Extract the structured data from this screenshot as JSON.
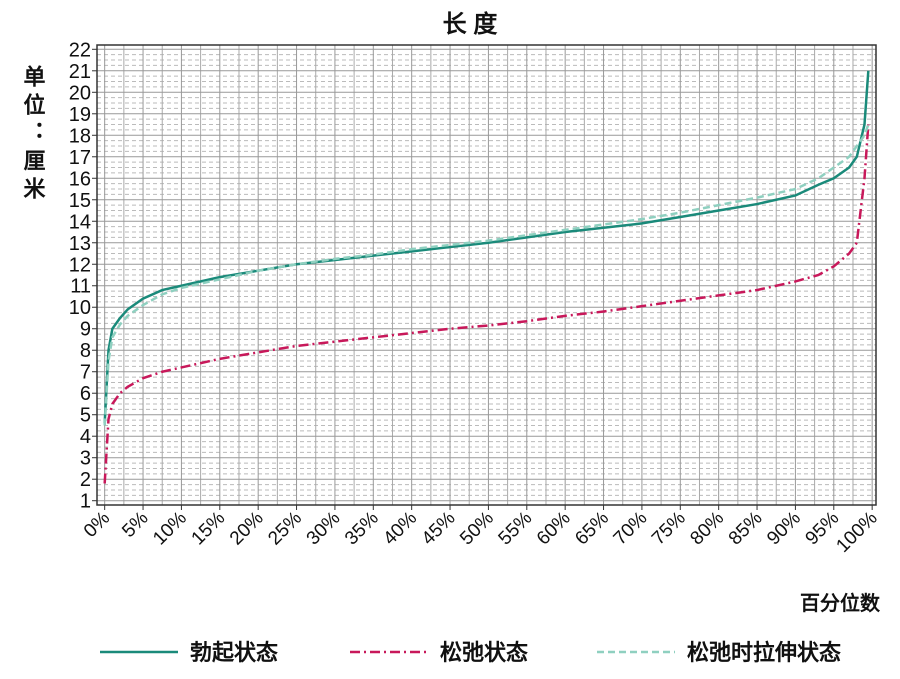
{
  "chart_data": {
    "type": "line",
    "title": "长 度",
    "y_label": "单位：厘米",
    "x_label": "百分位数",
    "x": [
      0,
      0.5,
      1,
      2,
      3,
      5,
      7.5,
      10,
      15,
      20,
      25,
      30,
      35,
      40,
      45,
      50,
      55,
      60,
      65,
      70,
      75,
      80,
      85,
      90,
      93,
      95,
      97,
      98,
      99,
      99.5
    ],
    "series": [
      {
        "name": "勃起状态",
        "color": "#1a8a7a",
        "dash": "solid",
        "values": [
          4.6,
          8.0,
          9.0,
          9.5,
          9.9,
          10.4,
          10.8,
          11.0,
          11.4,
          11.7,
          12.0,
          12.2,
          12.4,
          12.6,
          12.8,
          13.0,
          13.25,
          13.5,
          13.7,
          13.9,
          14.2,
          14.5,
          14.8,
          15.2,
          15.7,
          16.0,
          16.5,
          17.0,
          18.5,
          21.0
        ]
      },
      {
        "name": "松弛状态",
        "color": "#c8185a",
        "dash": "dashdot",
        "values": [
          1.8,
          4.8,
          5.5,
          6.0,
          6.3,
          6.7,
          7.0,
          7.2,
          7.6,
          7.9,
          8.2,
          8.4,
          8.6,
          8.8,
          9.0,
          9.15,
          9.35,
          9.6,
          9.8,
          10.05,
          10.3,
          10.55,
          10.8,
          11.2,
          11.5,
          11.9,
          12.5,
          13.0,
          16.0,
          18.5
        ]
      },
      {
        "name": "松弛时拉伸状态",
        "color": "#8fd0c0",
        "dash": "dashed",
        "values": [
          4.5,
          7.5,
          8.6,
          9.2,
          9.6,
          10.1,
          10.6,
          10.9,
          11.3,
          11.7,
          12.0,
          12.25,
          12.45,
          12.7,
          12.9,
          13.1,
          13.35,
          13.6,
          13.85,
          14.1,
          14.4,
          14.75,
          15.1,
          15.5,
          16.0,
          16.5,
          17.0,
          17.5,
          18.0,
          18.5
        ]
      }
    ],
    "xlim": [
      -1,
      100.5
    ],
    "ylim": [
      0.8,
      22.2
    ],
    "xticks": [
      {
        "value": 0,
        "label": "0%"
      },
      {
        "value": 5,
        "label": "5%"
      },
      {
        "value": 10,
        "label": "10%"
      },
      {
        "value": 15,
        "label": "15%"
      },
      {
        "value": 20,
        "label": "20%"
      },
      {
        "value": 25,
        "label": "25%"
      },
      {
        "value": 30,
        "label": "30%"
      },
      {
        "value": 35,
        "label": "35%"
      },
      {
        "value": 40,
        "label": "40%"
      },
      {
        "value": 45,
        "label": "45%"
      },
      {
        "value": 50,
        "label": "50%"
      },
      {
        "value": 55,
        "label": "55%"
      },
      {
        "value": 60,
        "label": "60%"
      },
      {
        "value": 65,
        "label": "65%"
      },
      {
        "value": 70,
        "label": "70%"
      },
      {
        "value": 75,
        "label": "75%"
      },
      {
        "value": 80,
        "label": "80%"
      },
      {
        "value": 85,
        "label": "85%"
      },
      {
        "value": 90,
        "label": "90%"
      },
      {
        "value": 95,
        "label": "95%"
      },
      {
        "value": 100,
        "label": "100%"
      }
    ],
    "yticks": [
      1,
      2,
      3,
      4,
      5,
      6,
      7,
      8,
      9,
      10,
      11,
      12,
      13,
      14,
      15,
      16,
      17,
      18,
      19,
      20,
      21,
      22
    ],
    "grid": true
  }
}
